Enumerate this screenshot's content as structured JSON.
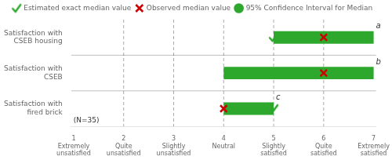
{
  "chart_data": {
    "type": "bar",
    "orientation": "horizontal",
    "categories": [
      "Satisfaction with\nCSEB housing",
      "Satisfaction with\nCSEB",
      "Satisfaction with\nfired brick"
    ],
    "series": [
      {
        "name": "Estimated exact median value",
        "type": "scatter",
        "marker": "check",
        "color": "#2da82d",
        "values": [
          5.0,
          5.0,
          5.0
        ]
      },
      {
        "name": "Observed median value",
        "type": "scatter",
        "marker": "x",
        "color": "#cc0000",
        "values": [
          6.0,
          6.0,
          4.0
        ]
      },
      {
        "name": "95% Confidence Interval for Median",
        "type": "bar",
        "color": "#2da82d",
        "values": [
          [
            5.0,
            7.0
          ],
          [
            4.0,
            7.0
          ],
          [
            4.0,
            5.0
          ]
        ]
      }
    ],
    "annotations": [
      "a",
      "b",
      "c"
    ],
    "footnote": "(N=35)",
    "xlim": [
      0.95,
      7.05
    ],
    "xticks": [
      {
        "value": 1,
        "label": "1\nExtremely\nunsatisfied"
      },
      {
        "value": 2,
        "label": "2\nQuite\nunsatisfied"
      },
      {
        "value": 3,
        "label": "3\nSlightly\nunsatisfied"
      },
      {
        "value": 4,
        "label": "4\nNeutral"
      },
      {
        "value": 5,
        "label": "5\nSlightly\nsatisfied"
      },
      {
        "value": 6,
        "label": "6\nQuite\nsatisfied"
      },
      {
        "value": 7,
        "label": "7\nExtremely\nsatisfied"
      }
    ],
    "vlines": [
      2,
      3,
      4,
      5,
      6
    ],
    "legend": "top",
    "grid": false
  }
}
